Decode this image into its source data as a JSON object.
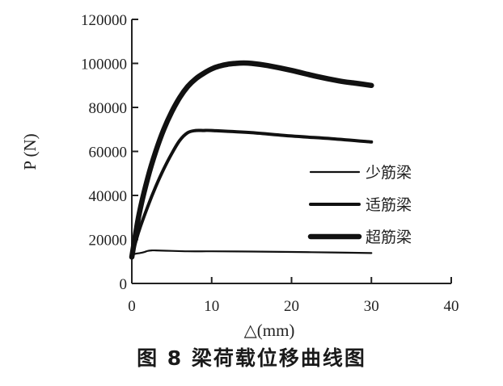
{
  "chart_data": {
    "type": "line",
    "xlabel": "△(mm)",
    "ylabel": "P (N)",
    "xlim": [
      0,
      40
    ],
    "ylim": [
      0,
      120000
    ],
    "xticks": [
      "0",
      "10",
      "20",
      "30",
      "40"
    ],
    "yticks": [
      "0",
      "20000",
      "40000",
      "60000",
      "80000",
      "100000",
      "120000"
    ],
    "grid": false,
    "legend_position": "right-middle",
    "series": [
      {
        "name": "少筋梁",
        "line": "thin",
        "x": [
          0,
          0.5,
          1,
          1.5,
          2,
          2.5,
          3,
          5,
          7,
          10,
          15,
          20,
          25,
          30
        ],
        "y": [
          13000,
          13500,
          13800,
          14200,
          14800,
          15000,
          15000,
          14800,
          14600,
          14600,
          14500,
          14300,
          14100,
          13800
        ]
      },
      {
        "name": "适筋梁",
        "line": "medium",
        "x": [
          0,
          0.5,
          1,
          2,
          3,
          4,
          5,
          6,
          7,
          8,
          9,
          10,
          15,
          20,
          25,
          30
        ],
        "y": [
          12000,
          19000,
          25000,
          35000,
          44000,
          52000,
          59000,
          65000,
          68500,
          69500,
          69500,
          69500,
          68500,
          67000,
          65800,
          64300
        ]
      },
      {
        "name": "超筋梁",
        "line": "thick",
        "x": [
          0,
          0.5,
          1,
          2,
          3,
          4,
          5,
          6,
          7,
          8,
          9,
          10,
          11,
          12,
          13,
          14,
          15,
          17,
          20,
          23,
          26,
          28,
          30
        ],
        "y": [
          12000,
          23000,
          33000,
          48000,
          60000,
          70000,
          78000,
          84500,
          89500,
          93000,
          95500,
          97500,
          98800,
          99600,
          100000,
          100200,
          100000,
          99000,
          96800,
          94200,
          92000,
          91000,
          90000
        ]
      }
    ]
  },
  "caption": "图 8   梁荷载位移曲线图"
}
